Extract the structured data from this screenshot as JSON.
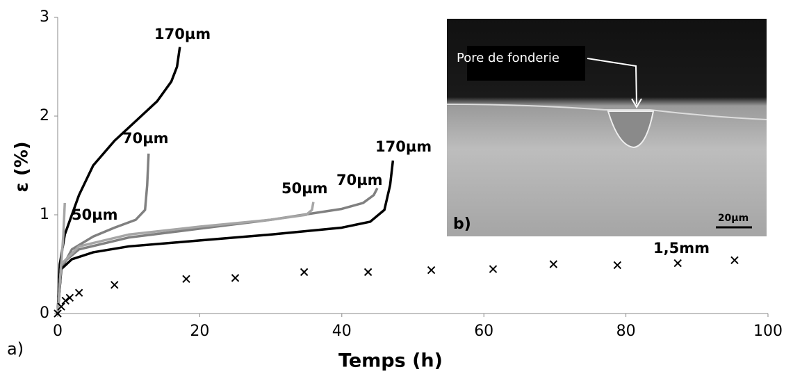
{
  "chart_data": {
    "type": "line",
    "xlabel": "Temps (h)",
    "ylabel": "ε (%)",
    "panel_label": "a)",
    "xlim": [
      0,
      100
    ],
    "xticks": [
      0,
      20,
      40,
      60,
      80,
      100
    ],
    "ylim": [
      0,
      3
    ],
    "yticks": [
      0,
      1,
      2,
      3
    ],
    "series": [
      {
        "name": "170µm",
        "color": "#000000",
        "x": [
          0,
          0.3,
          1,
          3,
          5,
          8,
          11,
          14,
          16,
          16.8,
          17.2
        ],
        "values": [
          0,
          0.5,
          0.8,
          1.2,
          1.5,
          1.75,
          1.95,
          2.15,
          2.35,
          2.5,
          2.7
        ]
      },
      {
        "name": "70µm",
        "color": "#808080",
        "x": [
          0,
          0.5,
          2,
          5,
          8,
          11,
          12.3,
          12.6,
          12.8
        ],
        "values": [
          0,
          0.45,
          0.65,
          0.78,
          0.87,
          0.95,
          1.05,
          1.3,
          1.62
        ]
      },
      {
        "name": "50µm",
        "color": "#a6a6a6",
        "x": [
          0,
          0.5,
          0.8,
          1
        ],
        "values": [
          0,
          0.5,
          0.8,
          1.12
        ]
      },
      {
        "name": "170µm",
        "color": "#000000",
        "x": [
          0,
          0.5,
          2,
          5,
          10,
          20,
          30,
          40,
          44,
          46,
          46.8,
          47.2
        ],
        "values": [
          0,
          0.45,
          0.55,
          0.62,
          0.68,
          0.74,
          0.8,
          0.87,
          0.93,
          1.05,
          1.3,
          1.55
        ]
      },
      {
        "name": "70µm",
        "color": "#808080",
        "x": [
          0,
          0.5,
          3,
          10,
          20,
          30,
          40,
          43,
          44.5,
          45
        ],
        "values": [
          0,
          0.5,
          0.65,
          0.77,
          0.86,
          0.95,
          1.06,
          1.12,
          1.2,
          1.27
        ]
      },
      {
        "name": "50µm",
        "color": "#a6a6a6",
        "x": [
          0,
          0.5,
          3,
          10,
          20,
          30,
          35,
          35.8,
          36
        ],
        "values": [
          0,
          0.5,
          0.68,
          0.8,
          0.88,
          0.95,
          1.0,
          1.05,
          1.13
        ]
      },
      {
        "name": "1,5mm",
        "color": "#000000",
        "marker": "x",
        "x": [
          0,
          0.5,
          1.1,
          1.7,
          3.0,
          8.0,
          18.1,
          25.0,
          34.7,
          43.7,
          52.6,
          61.3,
          69.8,
          78.8,
          87.3,
          95.3
        ],
        "values": [
          0,
          0.07,
          0.13,
          0.16,
          0.21,
          0.29,
          0.35,
          0.36,
          0.42,
          0.42,
          0.44,
          0.45,
          0.5,
          0.49,
          0.51,
          0.54
        ]
      }
    ]
  },
  "inset": {
    "label": "b)",
    "annotation": "Pore de fonderie",
    "scale_bar": "20µm"
  }
}
